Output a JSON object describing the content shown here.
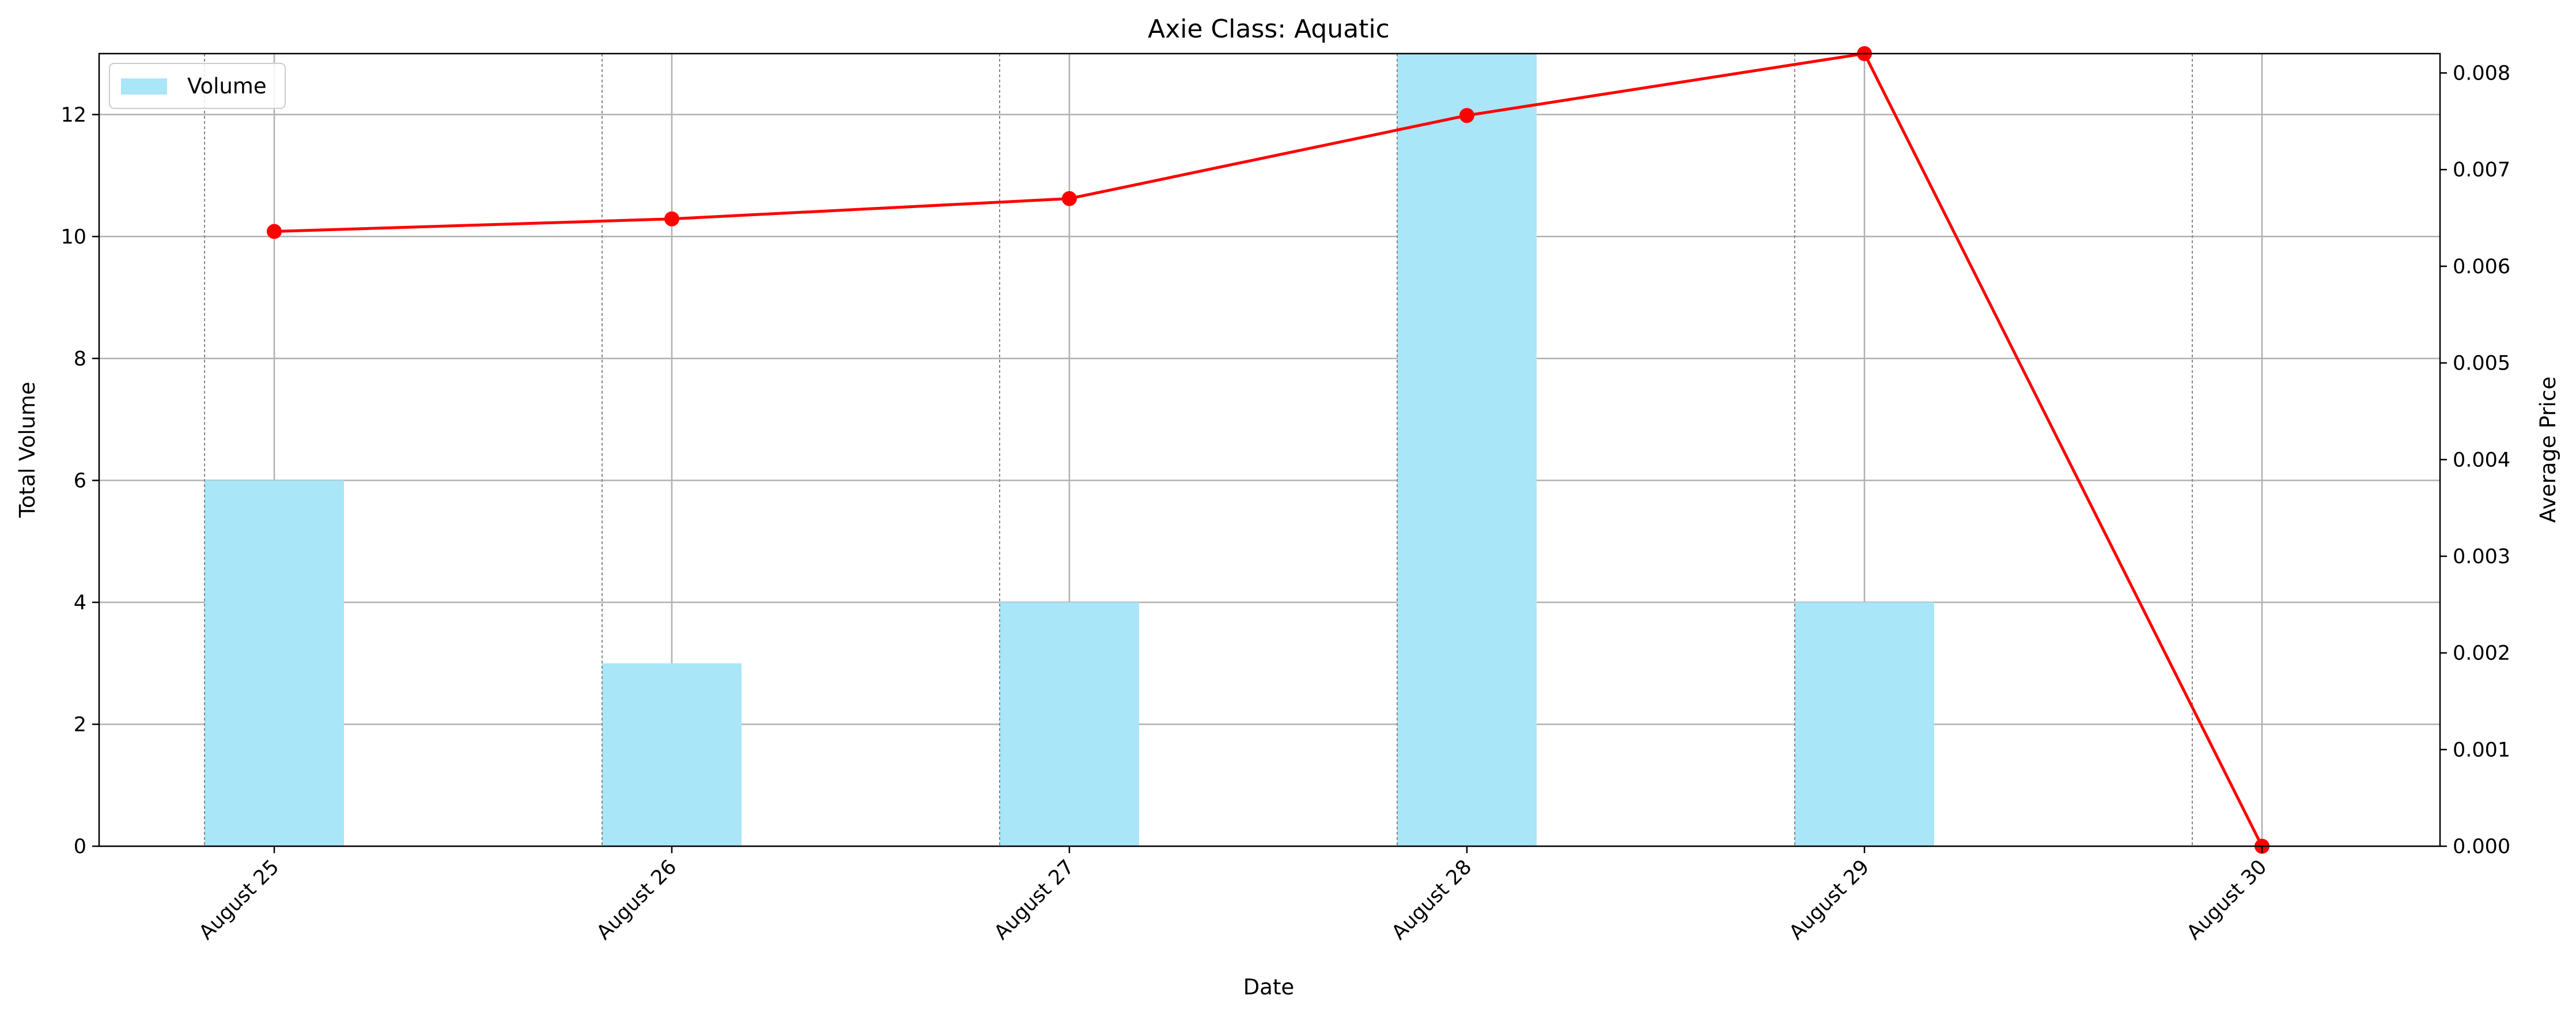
{
  "chart_data": {
    "type": "bar",
    "title": "Axie Class: Aquatic",
    "xlabel": "Date",
    "ylabel": "Total Volume",
    "y2label": "Average Price",
    "categories": [
      "August 25",
      "August 26",
      "August 27",
      "August 28",
      "August 29",
      "August 30"
    ],
    "series": [
      {
        "name": "Volume",
        "type": "bar",
        "axis": "left",
        "color": "#a8e6f8",
        "values": [
          6,
          3,
          4,
          13,
          4,
          0
        ]
      },
      {
        "type": "line",
        "axis": "right",
        "color": "#ff0000",
        "values": [
          0.00636,
          0.00649,
          0.0067,
          0.00756,
          0.0082,
          0.0
        ]
      }
    ],
    "ylim": [
      0,
      13
    ],
    "y2lim": [
      0,
      0.0082
    ],
    "yticks": [
      "0",
      "2",
      "4",
      "6",
      "8",
      "10",
      "12"
    ],
    "y2ticks": [
      "0.000",
      "0.001",
      "0.002",
      "0.003",
      "0.004",
      "0.005",
      "0.006",
      "0.007",
      "0.008"
    ],
    "grid": true,
    "legend": {
      "position": "top-left",
      "entries": [
        "Volume"
      ]
    }
  }
}
